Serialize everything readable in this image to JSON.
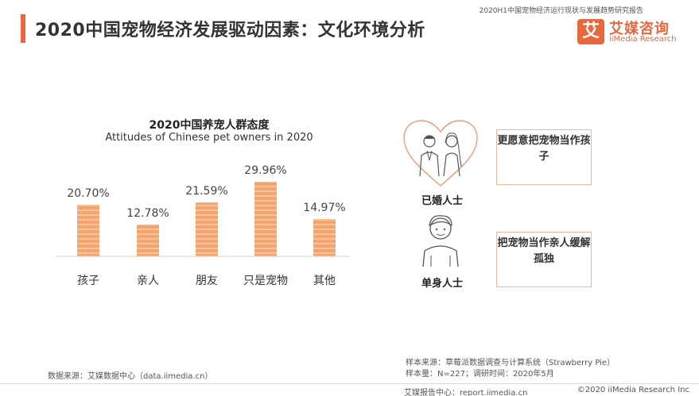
{
  "header": {
    "report_name": "2020H1中国宠物经济运行现状与发展趋势研究报告",
    "title": "2020中国宠物经济发展驱动因素：文化环境分析"
  },
  "logo": {
    "mark": "艾",
    "name_cn": "艾媒咨询",
    "name_en": "iiMedia Research"
  },
  "chart_data": {
    "type": "bar",
    "title": "2020中国养宠人群态度",
    "subtitle": "Attitudes of Chinese pet owners in 2020",
    "categories": [
      "孩子",
      "亲人",
      "朋友",
      "只是宠物",
      "其他"
    ],
    "values": [
      20.7,
      12.78,
      21.59,
      29.96,
      14.97
    ],
    "value_labels": [
      "20.70%",
      "12.78%",
      "21.59%",
      "29.96%",
      "14.97%"
    ],
    "unit": "%",
    "ylim": [
      0,
      35
    ],
    "bar_color": "#f3a56f",
    "bar_stripe_color": "#f7c39b",
    "grid": false
  },
  "segments": [
    {
      "label": "已婚人士",
      "statement": "更愿意把宠物当作孩子",
      "icon": "married-couple-icon"
    },
    {
      "label": "单身人士",
      "statement": "把宠物当作亲人缓解孤独",
      "icon": "single-person-icon"
    }
  ],
  "sources": {
    "data_source": "数据来源：艾媒数据中心（data.iimedia.cn）",
    "sample_source": "样本来源：草莓派数据调查与计算系统（Strawberry Pie）",
    "sample_info": "样本量：N=227；调研时间：2020年5月"
  },
  "footer": {
    "report_center": "艾媒报告中心：report.iimedia.cn",
    "copyright": "©2020  iiMedia Research  Inc"
  },
  "colors": {
    "accent": "#e8673c",
    "box_border": "#f0b89a"
  }
}
